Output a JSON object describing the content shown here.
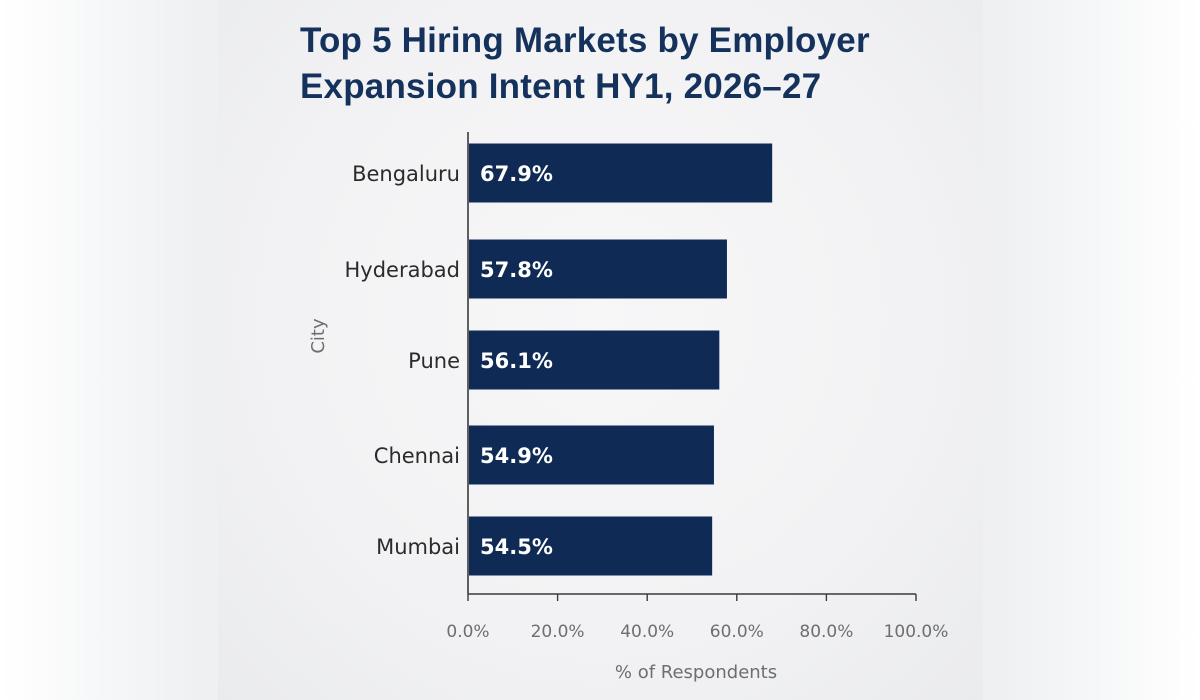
{
  "chart_data": {
    "type": "bar",
    "orientation": "horizontal",
    "title": "Top 5 Hiring Markets by Employer Expansion Intent HY1, 2026–27",
    "xlabel": "% of Respondents",
    "ylabel": "City",
    "categories": [
      "Bengaluru",
      "Hyderabad",
      "Pune",
      "Chennai",
      "Mumbai"
    ],
    "values": [
      67.9,
      57.8,
      56.1,
      54.9,
      54.5
    ],
    "data_labels": [
      "67.9%",
      "57.8%",
      "56.1%",
      "54.9%",
      "54.5%"
    ],
    "xlim": [
      0,
      100
    ],
    "xticks": [
      0,
      20,
      40,
      60,
      80,
      100
    ],
    "xtick_labels": [
      "0.0%",
      "20.0%",
      "40.0%",
      "60.0%",
      "80.0%",
      "100.0%"
    ],
    "grid": false,
    "bar_color": "#0f2a55"
  }
}
